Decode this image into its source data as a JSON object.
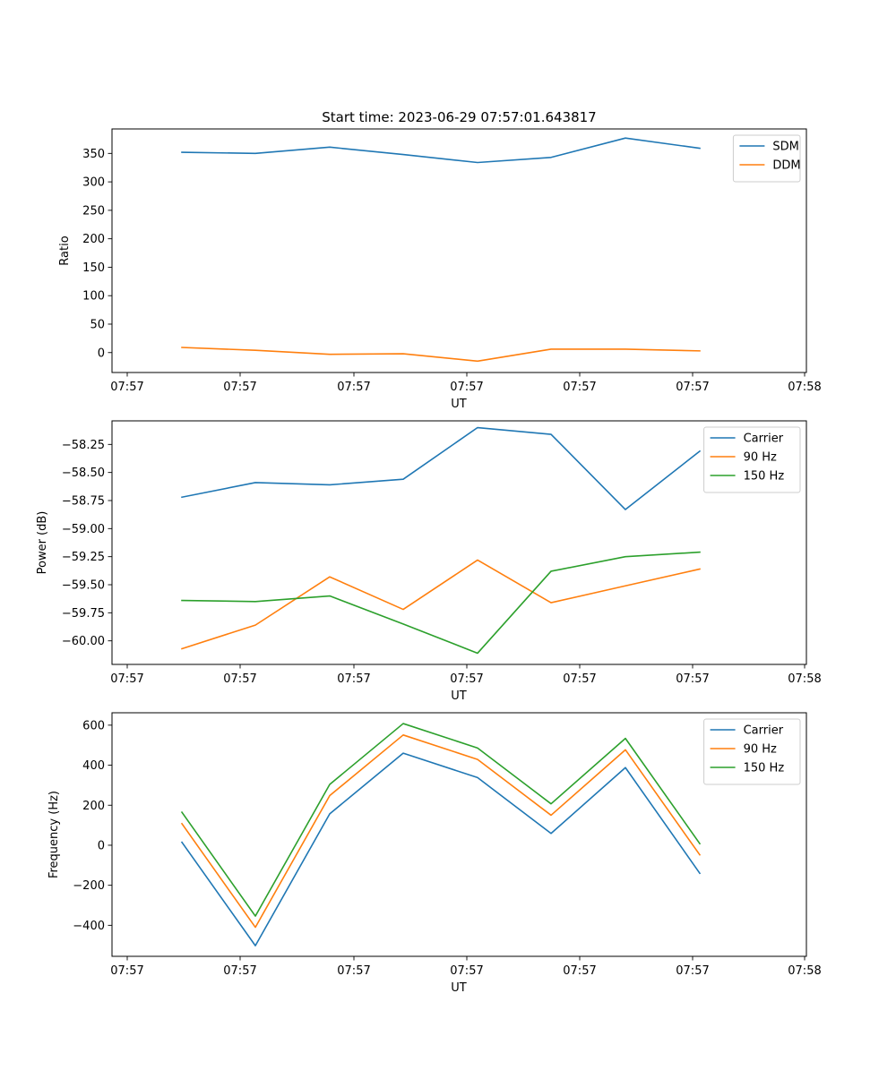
{
  "figure": {
    "title": "Start time: 2023-06-29 07:57:01.643817"
  },
  "chart_data": [
    {
      "type": "line",
      "xlabel": "UT",
      "ylabel": "Ratio",
      "x_tick_labels": [
        "07:57",
        "07:57",
        "07:57",
        "07:57",
        "07:57",
        "07:57",
        "07:58"
      ],
      "y_ticks": [
        0,
        50,
        100,
        150,
        200,
        250,
        300,
        350
      ],
      "y_tick_labels": [
        "0",
        "50",
        "100",
        "150",
        "200",
        "250",
        "300",
        "350"
      ],
      "ylim": [
        -35,
        393
      ],
      "legend_position": "top-right",
      "series": [
        {
          "name": "SDM",
          "color": "#1f77b4",
          "values": [
            352,
            350,
            361,
            348,
            334,
            343,
            377,
            359
          ]
        },
        {
          "name": "DDM",
          "color": "#ff7f0e",
          "values": [
            9,
            4,
            -3,
            -2,
            -15,
            6,
            6,
            3
          ]
        }
      ]
    },
    {
      "type": "line",
      "xlabel": "UT",
      "ylabel": "Power (dB)",
      "x_tick_labels": [
        "07:57",
        "07:57",
        "07:57",
        "07:57",
        "07:57",
        "07:57",
        "07:58"
      ],
      "y_ticks": [
        -60.0,
        -59.75,
        -59.5,
        -59.25,
        -59.0,
        -58.75,
        -58.5,
        -58.25
      ],
      "y_tick_labels": [
        "−60.00",
        "−59.75",
        "−59.50",
        "−59.25",
        "−59.00",
        "−58.75",
        "−58.50",
        "−58.25"
      ],
      "ylim": [
        -60.21,
        -58.04
      ],
      "legend_position": "top-right",
      "series": [
        {
          "name": "Carrier",
          "color": "#1f77b4",
          "values": [
            -58.72,
            -58.59,
            -58.61,
            -58.56,
            -58.1,
            -58.16,
            -58.83,
            -58.31
          ]
        },
        {
          "name": "90 Hz",
          "color": "#ff7f0e",
          "values": [
            -60.07,
            -59.86,
            -59.43,
            -59.72,
            -59.28,
            -59.66,
            -59.51,
            -59.36
          ]
        },
        {
          "name": "150 Hz",
          "color": "#2ca02c",
          "values": [
            -59.64,
            -59.65,
            -59.6,
            -59.85,
            -60.11,
            -59.38,
            -59.25,
            -59.21
          ]
        }
      ]
    },
    {
      "type": "line",
      "xlabel": "UT",
      "ylabel": "Frequency (Hz)",
      "x_tick_labels": [
        "07:57",
        "07:57",
        "07:57",
        "07:57",
        "07:57",
        "07:57",
        "07:58"
      ],
      "y_ticks": [
        -400,
        -200,
        0,
        200,
        400,
        600
      ],
      "y_tick_labels": [
        "−400",
        "−200",
        "0",
        "200",
        "400",
        "600"
      ],
      "ylim": [
        -555,
        662
      ],
      "legend_position": "top-right",
      "series": [
        {
          "name": "Carrier",
          "color": "#1f77b4",
          "values": [
            15,
            -502,
            157,
            460,
            338,
            59,
            388,
            -140
          ]
        },
        {
          "name": "90 Hz",
          "color": "#ff7f0e",
          "values": [
            108,
            -410,
            248,
            551,
            429,
            150,
            477,
            -48
          ]
        },
        {
          "name": "150 Hz",
          "color": "#2ca02c",
          "values": [
            165,
            -354,
            304,
            608,
            486,
            207,
            534,
            8
          ]
        }
      ]
    }
  ]
}
